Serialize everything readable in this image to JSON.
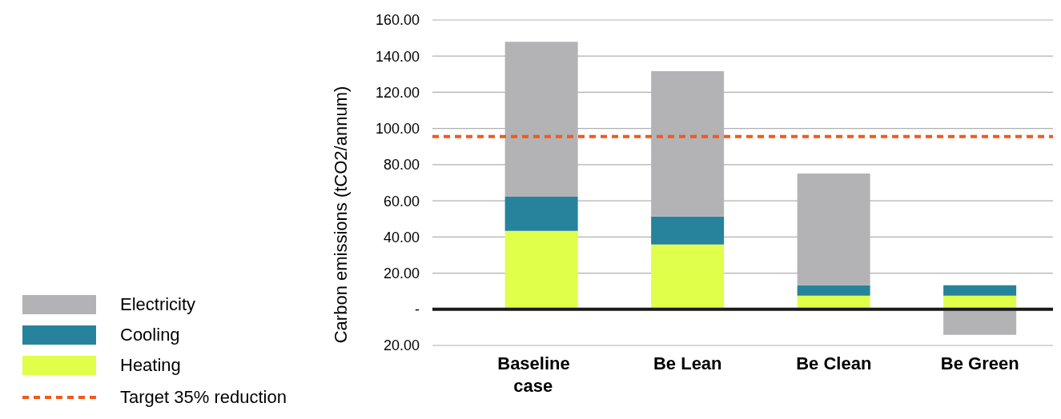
{
  "chart_data": {
    "type": "bar",
    "ylabel": "Carbon emissions (tCO2/annum)",
    "categories": [
      "Baseline case",
      "Be Lean",
      "Be Clean",
      "Be Green"
    ],
    "stacked": true,
    "series": [
      {
        "name": "Heating",
        "color": "#e0ff4a",
        "values": [
          43.3,
          35.8,
          7.5,
          7.5
        ]
      },
      {
        "name": "Cooling",
        "color": "#26839b",
        "values": [
          19,
          15.5,
          5.8,
          5.8
        ]
      },
      {
        "name": "Electricity",
        "color": "#b3b3b5",
        "values": [
          85.7,
          80.4,
          61.8,
          -14.1
        ]
      }
    ],
    "ylim": [
      -20,
      160
    ],
    "yticks": [
      {
        "value": -20,
        "label": "20.00"
      },
      {
        "value": 0,
        "label": "-"
      },
      {
        "value": 20,
        "label": "20.00"
      },
      {
        "value": 40,
        "label": "40.00"
      },
      {
        "value": 60,
        "label": "60.00"
      },
      {
        "value": 80,
        "label": "80.00"
      },
      {
        "value": 100,
        "label": "100.00"
      },
      {
        "value": 120,
        "label": "120.00"
      },
      {
        "value": 140,
        "label": "140.00"
      },
      {
        "value": 160,
        "label": "160.00"
      }
    ],
    "ref_lines": [
      {
        "axis": "y",
        "value": 95.5,
        "label": "Target 35% reduction",
        "color": "#f05a1a",
        "line_style": "dashed"
      }
    ],
    "grid": "y",
    "legend": "bottom left"
  }
}
